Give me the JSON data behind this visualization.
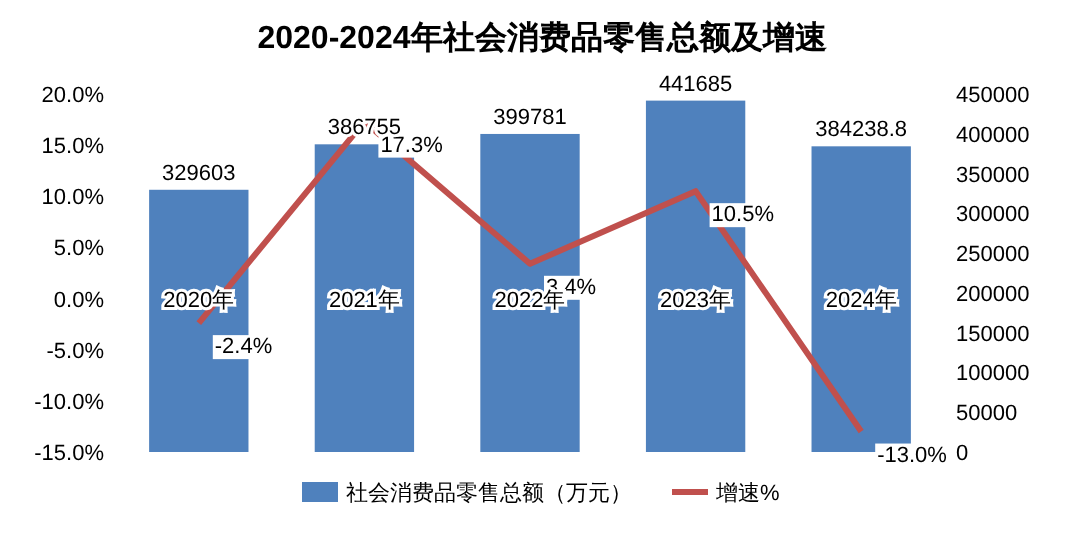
{
  "chart_data": {
    "type": "bar",
    "title": "2020-2024年社会消费品零售总额及增速",
    "categories": [
      "2020年",
      "2021年",
      "2022年",
      "2023年",
      "2024年"
    ],
    "series": [
      {
        "name": "社会消费品零售总额（万元）",
        "axis": "y2",
        "color": "#4f81bd",
        "values": [
          329603,
          386755,
          399781,
          441685,
          384238.8
        ],
        "data_labels": true
      },
      {
        "name": "增速%",
        "type": "line",
        "axis": "y",
        "color": "#c0504d",
        "values": [
          -2.4,
          17.3,
          3.4,
          10.5,
          -13.0
        ],
        "value_labels": [
          "-2.4%",
          "17.3%",
          "3.4%",
          "10.5%",
          "-13.0%"
        ]
      }
    ],
    "ylim": [
      -15,
      20
    ],
    "yticks": [
      {
        "value": -15,
        "label": "-15.0%"
      },
      {
        "value": -10,
        "label": "-10.0%"
      },
      {
        "value": -5,
        "label": "-5.0%"
      },
      {
        "value": 0,
        "label": "0.0%"
      },
      {
        "value": 5,
        "label": "5.0%"
      },
      {
        "value": 10,
        "label": "10.0%"
      },
      {
        "value": 15,
        "label": "15.0%"
      },
      {
        "value": 20,
        "label": "20.0%"
      }
    ],
    "y2lim": [
      0,
      450000
    ],
    "y2ticks": [
      0,
      50000,
      100000,
      150000,
      200000,
      250000,
      300000,
      350000,
      400000,
      450000
    ],
    "grid": false,
    "legend": "bottom"
  }
}
